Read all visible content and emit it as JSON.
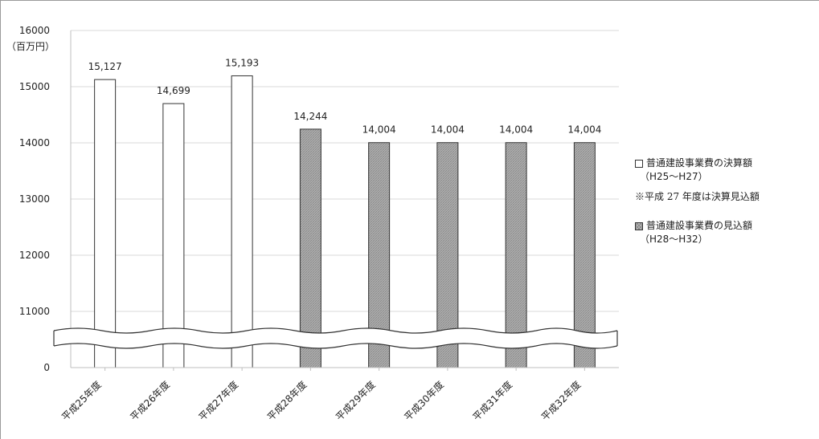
{
  "chart_data": {
    "type": "bar",
    "unit_label": "（百万円）",
    "categories": [
      "平成25年度",
      "平成26年度",
      "平成27年度",
      "平成28年度",
      "平成29年度",
      "平成30年度",
      "平成31年度",
      "平成32年度"
    ],
    "series": [
      {
        "name": "普通建設事業費の決算額",
        "period": "（H25～H27）",
        "pattern": "white",
        "values": [
          15127,
          14699,
          15193,
          null,
          null,
          null,
          null,
          null
        ]
      },
      {
        "name": "普通建設事業費の見込額",
        "period": "（H28～H32）",
        "pattern": "hatched",
        "values": [
          null,
          null,
          null,
          14244,
          14004,
          14004,
          14004,
          14004
        ]
      }
    ],
    "value_labels": [
      "15,127",
      "14,699",
      "15,193",
      "14,244",
      "14,004",
      "14,004",
      "14,004",
      "14,004"
    ],
    "y_ticks": [
      16000,
      15000,
      14000,
      13000,
      12000,
      11000,
      0
    ],
    "ylim": [
      11000,
      16000
    ],
    "axis_break": "between 11000 and 0",
    "grid": true,
    "legend_position": "right"
  },
  "legend": {
    "note": "※平成 27 年度は決算見込額"
  },
  "colors": {
    "grid": "#d9d9d9",
    "bar_outline": "#333333",
    "hatch_fill": "#b5b5b5",
    "text": "#222222"
  }
}
